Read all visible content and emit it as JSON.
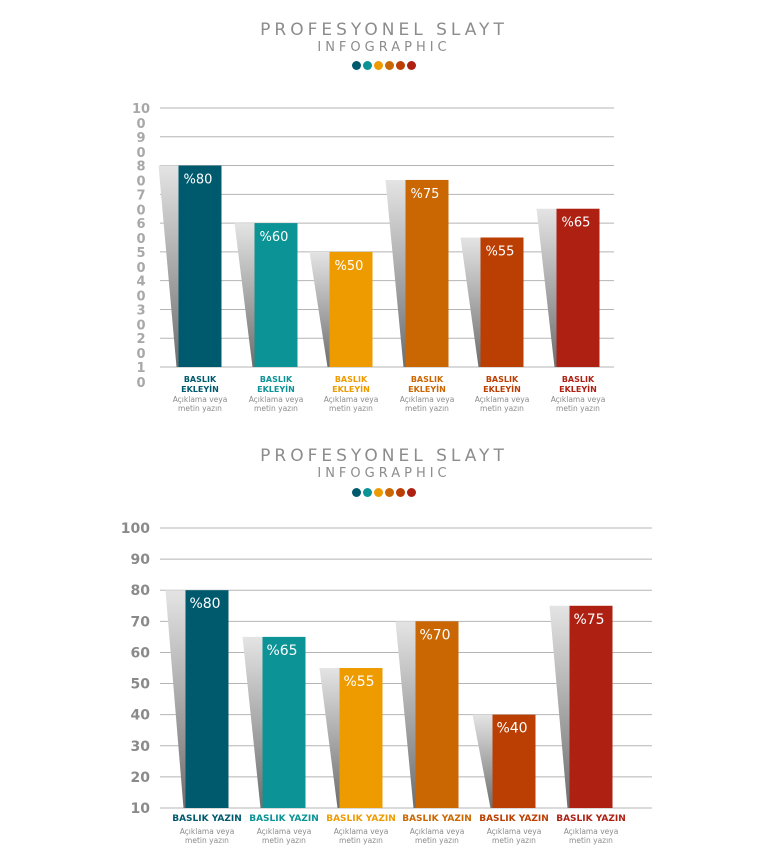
{
  "colors": [
    "#005a6e",
    "#0b9396",
    "#ee9b00",
    "#ca6702",
    "#bb3e03",
    "#ae2012"
  ],
  "chart_data": [
    {
      "type": "bar",
      "title": "PROFESYONEL SLAYT",
      "subtitle": "INFOGRAPHIC",
      "categories": [
        "BASLIK EKLEYİN",
        "BASLIK EKLEYİN",
        "BASLIK EKLEYİN",
        "BASLIK EKLEYİN",
        "BASLIK EKLEYİN",
        "BASLIK EKLEYİN"
      ],
      "descriptions": [
        "Açıklama veya metin yazın",
        "Açıklama veya metin yazın",
        "Açıklama veya metin yazın",
        "Açıklama veya metin yazın",
        "Açıklama veya metin yazın",
        "Açıklama veya metin yazın"
      ],
      "values": [
        80,
        60,
        50,
        75,
        55,
        65
      ],
      "value_labels": [
        "%80",
        "%60",
        "%50",
        "%75",
        "%55",
        "%65"
      ],
      "yticks": [
        "10\n0",
        "9\n0",
        "8\n0",
        "7\n0",
        "6\n0",
        "5\n0",
        "4\n0",
        "3\n0",
        "2\n0",
        "1\n0"
      ],
      "ylim": [
        10,
        100
      ],
      "grid": true
    },
    {
      "type": "bar",
      "title": "PROFESYONEL SLAYT",
      "subtitle": "INFOGRAPHIC",
      "categories": [
        "BASLIK YAZIN",
        "BASLIK YAZIN",
        "BASLIK YAZIN",
        "BASLIK YAZIN",
        "BASLIK YAZIN",
        "BASLIK YAZIN"
      ],
      "descriptions": [
        "Açıklama veya metin yazın",
        "Açıklama veya metin yazın",
        "Açıklama veya metin yazın",
        "Açıklama veya metin yazın",
        "Açıklama veya metin yazın",
        "Açıklama veya metin yazın"
      ],
      "values": [
        80,
        65,
        55,
        70,
        40,
        75
      ],
      "value_labels": [
        "%80",
        "%65",
        "%55",
        "%70",
        "%40",
        "%75"
      ],
      "yticks": [
        "100",
        "90",
        "80",
        "70",
        "60",
        "50",
        "40",
        "30",
        "20",
        "10"
      ],
      "ylim": [
        10,
        100
      ],
      "grid": true
    }
  ]
}
